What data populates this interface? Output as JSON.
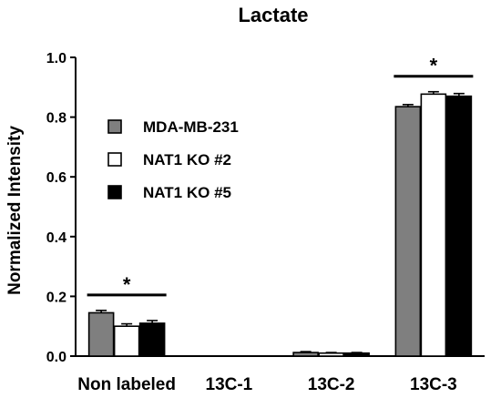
{
  "chart_data": {
    "type": "bar",
    "title": "Lactate",
    "xlabel": "",
    "ylabel": "Normalized Intensity",
    "ylim": [
      0,
      1.0
    ],
    "yticks": [
      "0.0",
      "0.2",
      "0.4",
      "0.6",
      "0.8",
      "1.0"
    ],
    "categories": [
      "Non labeled",
      "13C-1",
      "13C-2",
      "13C-3"
    ],
    "series": [
      {
        "name": "MDA-MB-231",
        "color": "#7f7f7f",
        "values": [
          0.145,
          0.0,
          0.012,
          0.835
        ],
        "errors": [
          0.008,
          0.0,
          0.003,
          0.007
        ]
      },
      {
        "name": "NAT1 KO #2",
        "color": "#ffffff",
        "values": [
          0.1,
          0.0,
          0.01,
          0.877
        ],
        "errors": [
          0.008,
          0.0,
          0.002,
          0.008
        ]
      },
      {
        "name": "NAT1 KO #5",
        "color": "#000000",
        "values": [
          0.11,
          0.0,
          0.01,
          0.87
        ],
        "errors": [
          0.009,
          0.0,
          0.002,
          0.009
        ]
      }
    ],
    "annotations": [
      {
        "category": "Non labeled",
        "text": "*"
      },
      {
        "category": "13C-3",
        "text": "*"
      }
    ],
    "legend": "upper-left",
    "grid": false
  }
}
